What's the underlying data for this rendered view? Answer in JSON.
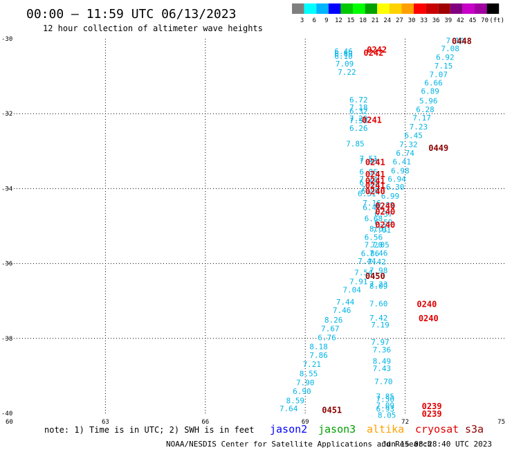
{
  "title": "00:00 – 11:59 UTC 06/13/2023",
  "subtitle": "12 hour collection of altimeter wave heights",
  "legend": {
    "colors": [
      "#7f7f7f",
      "#00ffff",
      "#00b4ff",
      "#0000ff",
      "#00c800",
      "#00ff00",
      "#00a000",
      "#ffff00",
      "#ffd200",
      "#ffa000",
      "#ff0000",
      "#c80000",
      "#a00000",
      "#800080",
      "#c800c8",
      "#a000a0",
      "#000000"
    ],
    "labels": [
      "3",
      "6",
      "9",
      "12",
      "15",
      "18",
      "21",
      "24",
      "27",
      "30",
      "33",
      "36",
      "39",
      "42",
      "45",
      "70",
      "(ft)"
    ]
  },
  "chart_data": {
    "type": "scatter",
    "xlim": [
      60,
      75
    ],
    "ylim": [
      -40,
      -30
    ],
    "x_ticks": [
      "60",
      "63",
      "66",
      "69",
      "72",
      "75"
    ],
    "y_ticks": [
      "-30",
      "-32",
      "-34",
      "-36",
      "-38",
      "-40"
    ],
    "grid": true,
    "points": [
      {
        "x": 70.15,
        "y": -30.33,
        "v": "6.46"
      },
      {
        "x": 70.15,
        "y": -30.4,
        "v": "6.69"
      },
      {
        "x": 70.15,
        "y": -30.46,
        "v": "6.10"
      },
      {
        "x": 70.18,
        "y": -30.67,
        "v": "7.09"
      },
      {
        "x": 70.25,
        "y": -30.89,
        "v": "7.22"
      },
      {
        "x": 70.6,
        "y": -31.63,
        "v": "6.72"
      },
      {
        "x": 70.6,
        "y": -31.83,
        "v": "7.18"
      },
      {
        "x": 70.6,
        "y": -31.93,
        "v": "6.32"
      },
      {
        "x": 70.6,
        "y": -32.13,
        "v": "7.29"
      },
      {
        "x": 70.6,
        "y": -32.18,
        "v": "7.53"
      },
      {
        "x": 70.6,
        "y": -32.38,
        "v": "6.26"
      },
      {
        "x": 70.5,
        "y": -32.8,
        "v": "7.85"
      },
      {
        "x": 70.9,
        "y": -33.2,
        "v": "7.51"
      },
      {
        "x": 70.9,
        "y": -33.26,
        "v": "7.93"
      },
      {
        "x": 70.9,
        "y": -33.55,
        "v": "6.86"
      },
      {
        "x": 70.9,
        "y": -33.74,
        "v": "7.24"
      },
      {
        "x": 70.9,
        "y": -33.84,
        "v": "6.55"
      },
      {
        "x": 70.95,
        "y": -34.0,
        "v": "7.08"
      },
      {
        "x": 70.95,
        "y": -34.07,
        "v": "6.20"
      },
      {
        "x": 70.85,
        "y": -34.13,
        "v": "6.31"
      },
      {
        "x": 71.0,
        "y": -34.38,
        "v": "7.16"
      },
      {
        "x": 71.0,
        "y": -34.5,
        "v": "6.46"
      },
      {
        "x": 71.05,
        "y": -34.8,
        "v": "6.68"
      },
      {
        "x": 71.2,
        "y": -35.07,
        "v": "8.01"
      },
      {
        "x": 71.05,
        "y": -35.3,
        "v": "6.56"
      },
      {
        "x": 71.05,
        "y": -35.5,
        "v": "7.20"
      },
      {
        "x": 70.95,
        "y": -35.73,
        "v": "6.86"
      },
      {
        "x": 70.85,
        "y": -35.93,
        "v": "7.44"
      },
      {
        "x": 70.75,
        "y": -36.24,
        "v": "7.54"
      },
      {
        "x": 70.6,
        "y": -36.48,
        "v": "7.91"
      },
      {
        "x": 70.4,
        "y": -36.7,
        "v": "7.04"
      },
      {
        "x": 70.2,
        "y": -37.02,
        "v": "7.44"
      },
      {
        "x": 70.1,
        "y": -37.25,
        "v": "7.46"
      },
      {
        "x": 69.85,
        "y": -37.5,
        "v": "8.26"
      },
      {
        "x": 69.75,
        "y": -37.74,
        "v": "7.67"
      },
      {
        "x": 69.65,
        "y": -37.98,
        "v": "6.76"
      },
      {
        "x": 69.4,
        "y": -38.22,
        "v": "8.18"
      },
      {
        "x": 69.4,
        "y": -38.45,
        "v": "7.86"
      },
      {
        "x": 69.2,
        "y": -38.69,
        "v": "7.21"
      },
      {
        "x": 69.1,
        "y": -38.94,
        "v": "8.55"
      },
      {
        "x": 69.0,
        "y": -39.18,
        "v": "7.90"
      },
      {
        "x": 68.9,
        "y": -39.41,
        "v": "6.90"
      },
      {
        "x": 68.7,
        "y": -39.66,
        "v": "8.59"
      },
      {
        "x": 68.5,
        "y": -39.87,
        "v": "7.64"
      },
      {
        "x": 73.5,
        "y": -30.05,
        "v": "7.10"
      },
      {
        "x": 73.35,
        "y": -30.26,
        "v": "7.08"
      },
      {
        "x": 73.2,
        "y": -30.49,
        "v": "6.92"
      },
      {
        "x": 73.15,
        "y": -30.72,
        "v": "7.15"
      },
      {
        "x": 73.0,
        "y": -30.95,
        "v": "7.07"
      },
      {
        "x": 72.85,
        "y": -31.17,
        "v": "6.66"
      },
      {
        "x": 72.75,
        "y": -31.4,
        "v": "6.89"
      },
      {
        "x": 72.7,
        "y": -31.65,
        "v": "5.96"
      },
      {
        "x": 72.6,
        "y": -31.89,
        "v": "6.28"
      },
      {
        "x": 72.5,
        "y": -32.11,
        "v": "7.17"
      },
      {
        "x": 72.4,
        "y": -32.35,
        "v": "7.23"
      },
      {
        "x": 72.25,
        "y": -32.58,
        "v": "6.45"
      },
      {
        "x": 72.1,
        "y": -32.82,
        "v": "7.32"
      },
      {
        "x": 72.0,
        "y": -33.05,
        "v": "6.74"
      },
      {
        "x": 71.9,
        "y": -33.28,
        "v": "6.41"
      },
      {
        "x": 71.85,
        "y": -33.52,
        "v": "6.98"
      },
      {
        "x": 71.75,
        "y": -33.74,
        "v": "6.94"
      },
      {
        "x": 71.7,
        "y": -33.96,
        "v": "6.30"
      },
      {
        "x": 71.55,
        "y": -34.2,
        "v": "6.99"
      },
      {
        "x": 71.4,
        "y": -34.44,
        "v": "6.89"
      },
      {
        "x": 71.35,
        "y": -34.68,
        "v": "6.37"
      },
      {
        "x": 71.35,
        "y": -34.9,
        "v": "6.59"
      },
      {
        "x": 71.3,
        "y": -35.1,
        "v": "7.01"
      },
      {
        "x": 71.25,
        "y": -35.5,
        "v": "7.05"
      },
      {
        "x": 71.2,
        "y": -35.72,
        "v": "7.46"
      },
      {
        "x": 71.15,
        "y": -35.95,
        "v": "7.42"
      },
      {
        "x": 71.2,
        "y": -36.18,
        "v": "7.98"
      },
      {
        "x": 71.2,
        "y": -36.55,
        "v": "7.23"
      },
      {
        "x": 71.2,
        "y": -36.6,
        "v": "8.09"
      },
      {
        "x": 71.2,
        "y": -37.07,
        "v": "7.60"
      },
      {
        "x": 71.2,
        "y": -37.45,
        "v": "7.42"
      },
      {
        "x": 71.25,
        "y": -37.63,
        "v": "7.19"
      },
      {
        "x": 71.25,
        "y": -38.1,
        "v": "7.97"
      },
      {
        "x": 71.3,
        "y": -38.3,
        "v": "7.36"
      },
      {
        "x": 71.3,
        "y": -38.6,
        "v": "8.49"
      },
      {
        "x": 71.3,
        "y": -38.8,
        "v": "7.43"
      },
      {
        "x": 71.35,
        "y": -39.15,
        "v": "7.70"
      },
      {
        "x": 71.4,
        "y": -39.55,
        "v": "7.85"
      },
      {
        "x": 71.4,
        "y": -39.62,
        "v": "7.50"
      },
      {
        "x": 71.4,
        "y": -39.79,
        "v": "7.09"
      },
      {
        "x": 71.4,
        "y": -39.88,
        "v": "6.93"
      },
      {
        "x": 71.45,
        "y": -40.05,
        "v": "8.05"
      }
    ],
    "pass_times": [
      {
        "x": 73.7,
        "y": -30.05,
        "t": "0448",
        "sat": "s3a"
      },
      {
        "x": 71.15,
        "y": -30.28,
        "t": "0242",
        "sat": "cryosat"
      },
      {
        "x": 71.05,
        "y": -30.36,
        "t": "0242",
        "sat": "cryosat"
      },
      {
        "x": 71.0,
        "y": -32.15,
        "t": "0241",
        "sat": "cryosat"
      },
      {
        "x": 73.0,
        "y": -32.9,
        "t": "0449",
        "sat": "s3a"
      },
      {
        "x": 71.1,
        "y": -33.28,
        "t": "0241",
        "sat": "cryosat"
      },
      {
        "x": 71.1,
        "y": -33.6,
        "t": "0241",
        "sat": "cryosat"
      },
      {
        "x": 71.1,
        "y": -33.78,
        "t": "0241",
        "sat": "cryosat"
      },
      {
        "x": 71.1,
        "y": -33.9,
        "t": "0241",
        "sat": "cryosat"
      },
      {
        "x": 71.1,
        "y": -34.06,
        "t": "0240",
        "sat": "cryosat"
      },
      {
        "x": 71.4,
        "y": -34.45,
        "t": "0240",
        "sat": "cryosat"
      },
      {
        "x": 71.4,
        "y": -34.6,
        "t": "0240",
        "sat": "cryosat"
      },
      {
        "x": 71.4,
        "y": -34.95,
        "t": "0240",
        "sat": "cryosat"
      },
      {
        "x": 71.1,
        "y": -36.32,
        "t": "0450",
        "sat": "s3a"
      },
      {
        "x": 72.65,
        "y": -37.07,
        "t": "0240",
        "sat": "cryosat"
      },
      {
        "x": 72.7,
        "y": -37.45,
        "t": "0240",
        "sat": "cryosat"
      },
      {
        "x": 72.8,
        "y": -39.8,
        "t": "0239",
        "sat": "cryosat"
      },
      {
        "x": 72.8,
        "y": -40.0,
        "t": "0239",
        "sat": "cryosat"
      },
      {
        "x": 69.8,
        "y": -39.9,
        "t": "0451",
        "sat": "s3a"
      }
    ],
    "point_color": "#00b4e6"
  },
  "footer": {
    "note": "note: 1) Time is in UTC; 2) SWH is in feet",
    "credit": "NOAA/NESDIS Center for Satellite Applications and Research",
    "timestamp": "Jun 15 08:28:40 UTC 2023"
  },
  "satellites": [
    {
      "name": "jason2",
      "color": "#0000ff"
    },
    {
      "name": "jason3",
      "color": "#00a000"
    },
    {
      "name": "altika",
      "color": "#ffa000"
    },
    {
      "name": "cryosat",
      "color": "#e00000"
    },
    {
      "name": "s3a",
      "color": "#8b0000"
    }
  ]
}
